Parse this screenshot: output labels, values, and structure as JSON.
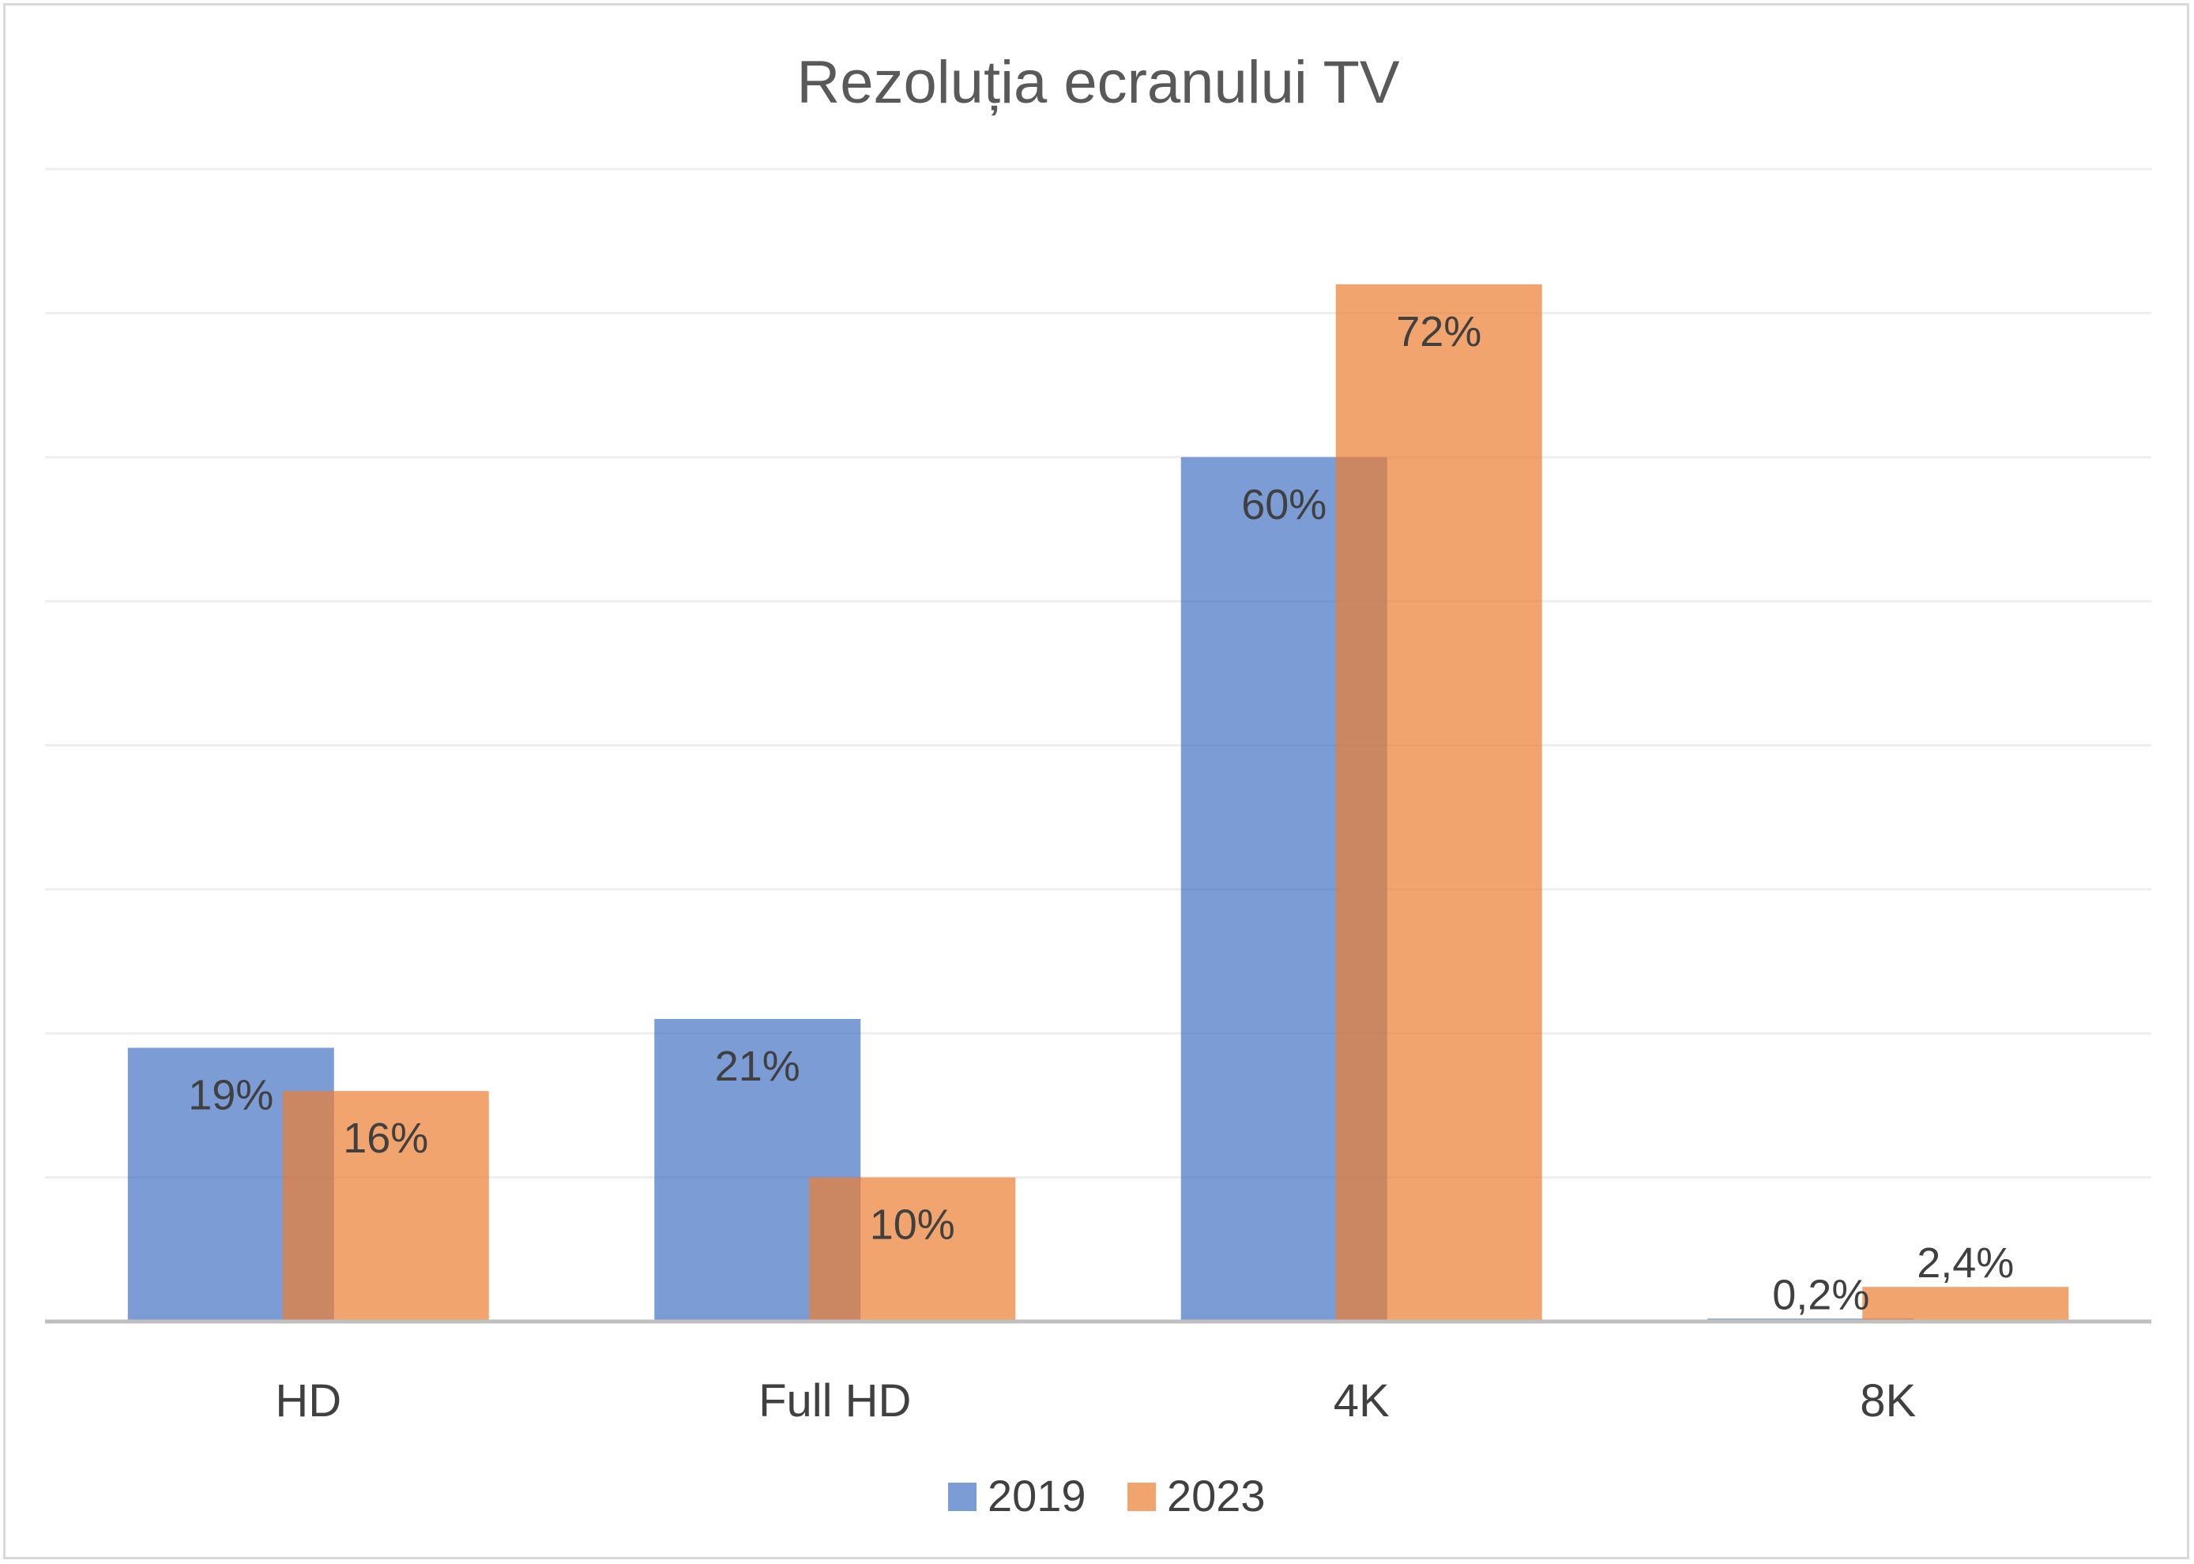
{
  "chart_data": {
    "type": "bar",
    "title": "Rezoluția ecranului TV",
    "categories": [
      "HD",
      "Full HD",
      "4K",
      "8K"
    ],
    "series": [
      {
        "name": "2019",
        "values": [
          19,
          21,
          60,
          0.2
        ],
        "labels": [
          "19%",
          "21%",
          "60%",
          "0,2%"
        ],
        "color": "#4472c4"
      },
      {
        "name": "2023",
        "values": [
          16,
          10,
          72,
          2.4
        ],
        "labels": [
          "16%",
          "10%",
          "72%",
          "2,4%"
        ],
        "color": "#ed7d31"
      }
    ],
    "ylim": [
      0,
      80
    ],
    "ystep": 10,
    "grid": true,
    "legend": "bottom",
    "bar_opacity": 0.7
  }
}
